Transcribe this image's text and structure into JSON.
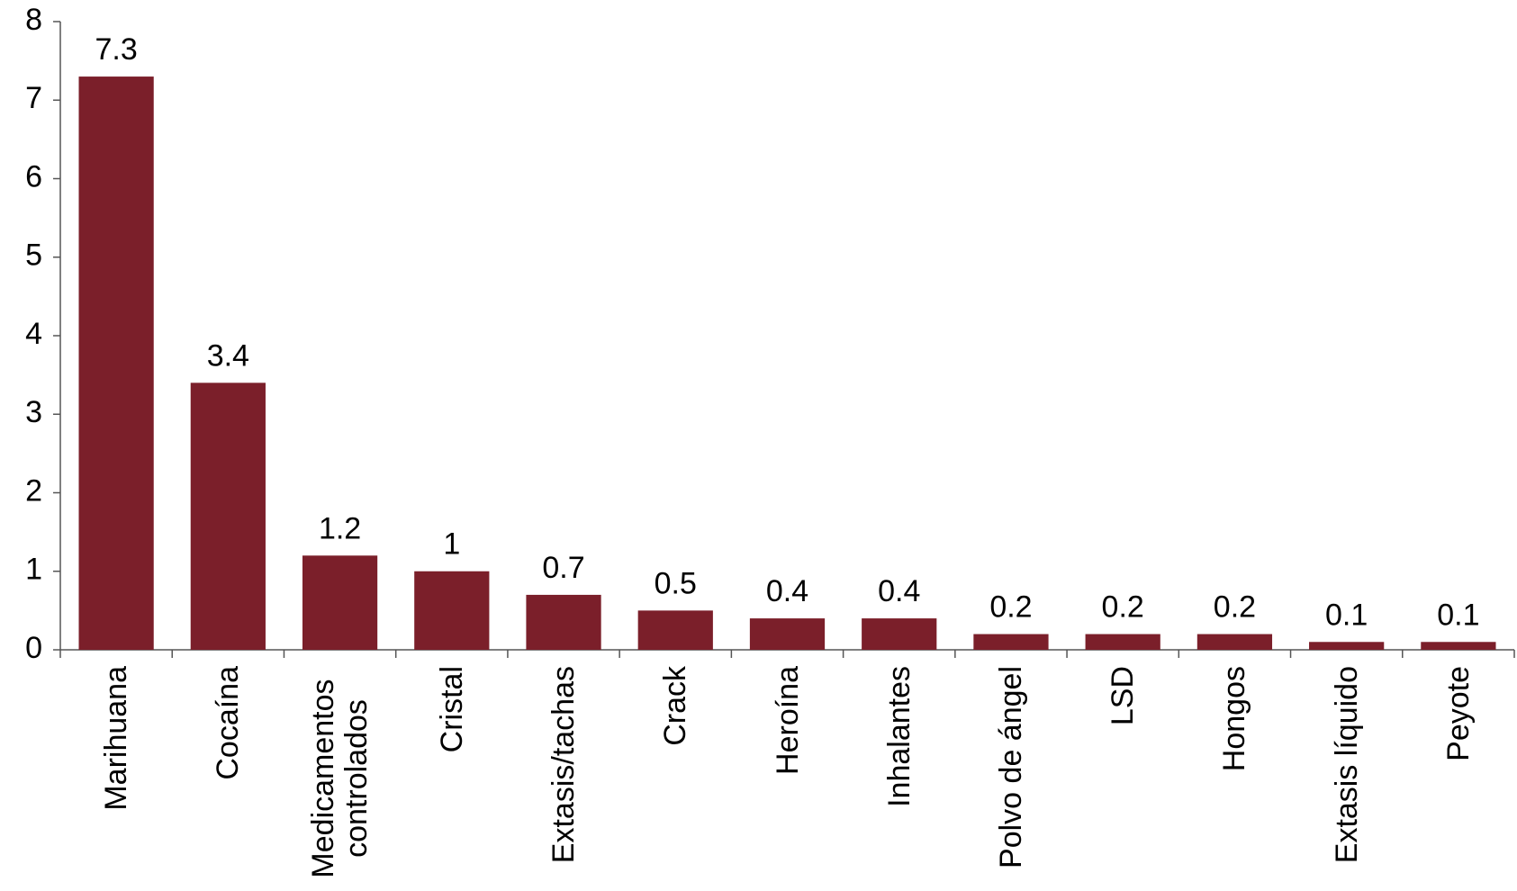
{
  "chart_data": {
    "type": "bar",
    "categories": [
      "Marihuana",
      "Cocaína",
      "Medicamentos controlados",
      "Cristal",
      "Extasis/tachas",
      "Crack",
      "Heroína",
      "Inhalantes",
      "Polvo de ángel",
      "LSD",
      "Hongos",
      "Extasis líquido",
      "Peyote"
    ],
    "values": [
      7.3,
      3.4,
      1.2,
      1,
      0.7,
      0.5,
      0.4,
      0.4,
      0.2,
      0.2,
      0.2,
      0.1,
      0.1
    ],
    "color": "#7b1f2a",
    "ylim": [
      0,
      8
    ],
    "yticks": [
      0,
      1,
      2,
      3,
      4,
      5,
      6,
      7,
      8
    ],
    "grid": false
  }
}
